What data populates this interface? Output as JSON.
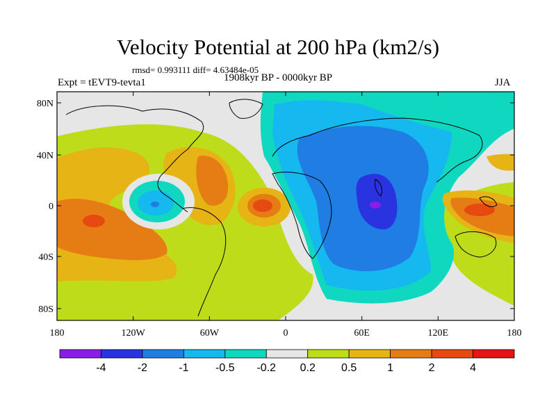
{
  "title": "Velocity Potential at 200 hPa (km2/s)",
  "stats": "rmsd= 0.993111 diff= 4.63484e-05",
  "experiment": "Expt = tEVT9-tevta1",
  "period": "1908kyr BP - 0000kyr BP",
  "season": "JJA",
  "axes": {
    "lon_ticks": [
      "180",
      "120W",
      "60W",
      "0",
      "60E",
      "120E",
      "180"
    ],
    "lat_ticks": [
      "80N",
      "40N",
      "0",
      "40S",
      "80S"
    ]
  },
  "colorbar": {
    "labels": [
      "-4",
      "-2",
      "-1",
      "-0.5",
      "-0.2",
      "0.2",
      "0.5",
      "1",
      "2",
      "4"
    ],
    "colors": [
      "#8a1ee6",
      "#2a33e0",
      "#1f7de3",
      "#15b8ef",
      "#10d8c0",
      "#e6e6e6",
      "#bedc1a",
      "#e6b414",
      "#e67d14",
      "#e64a10",
      "#e61414"
    ]
  }
}
